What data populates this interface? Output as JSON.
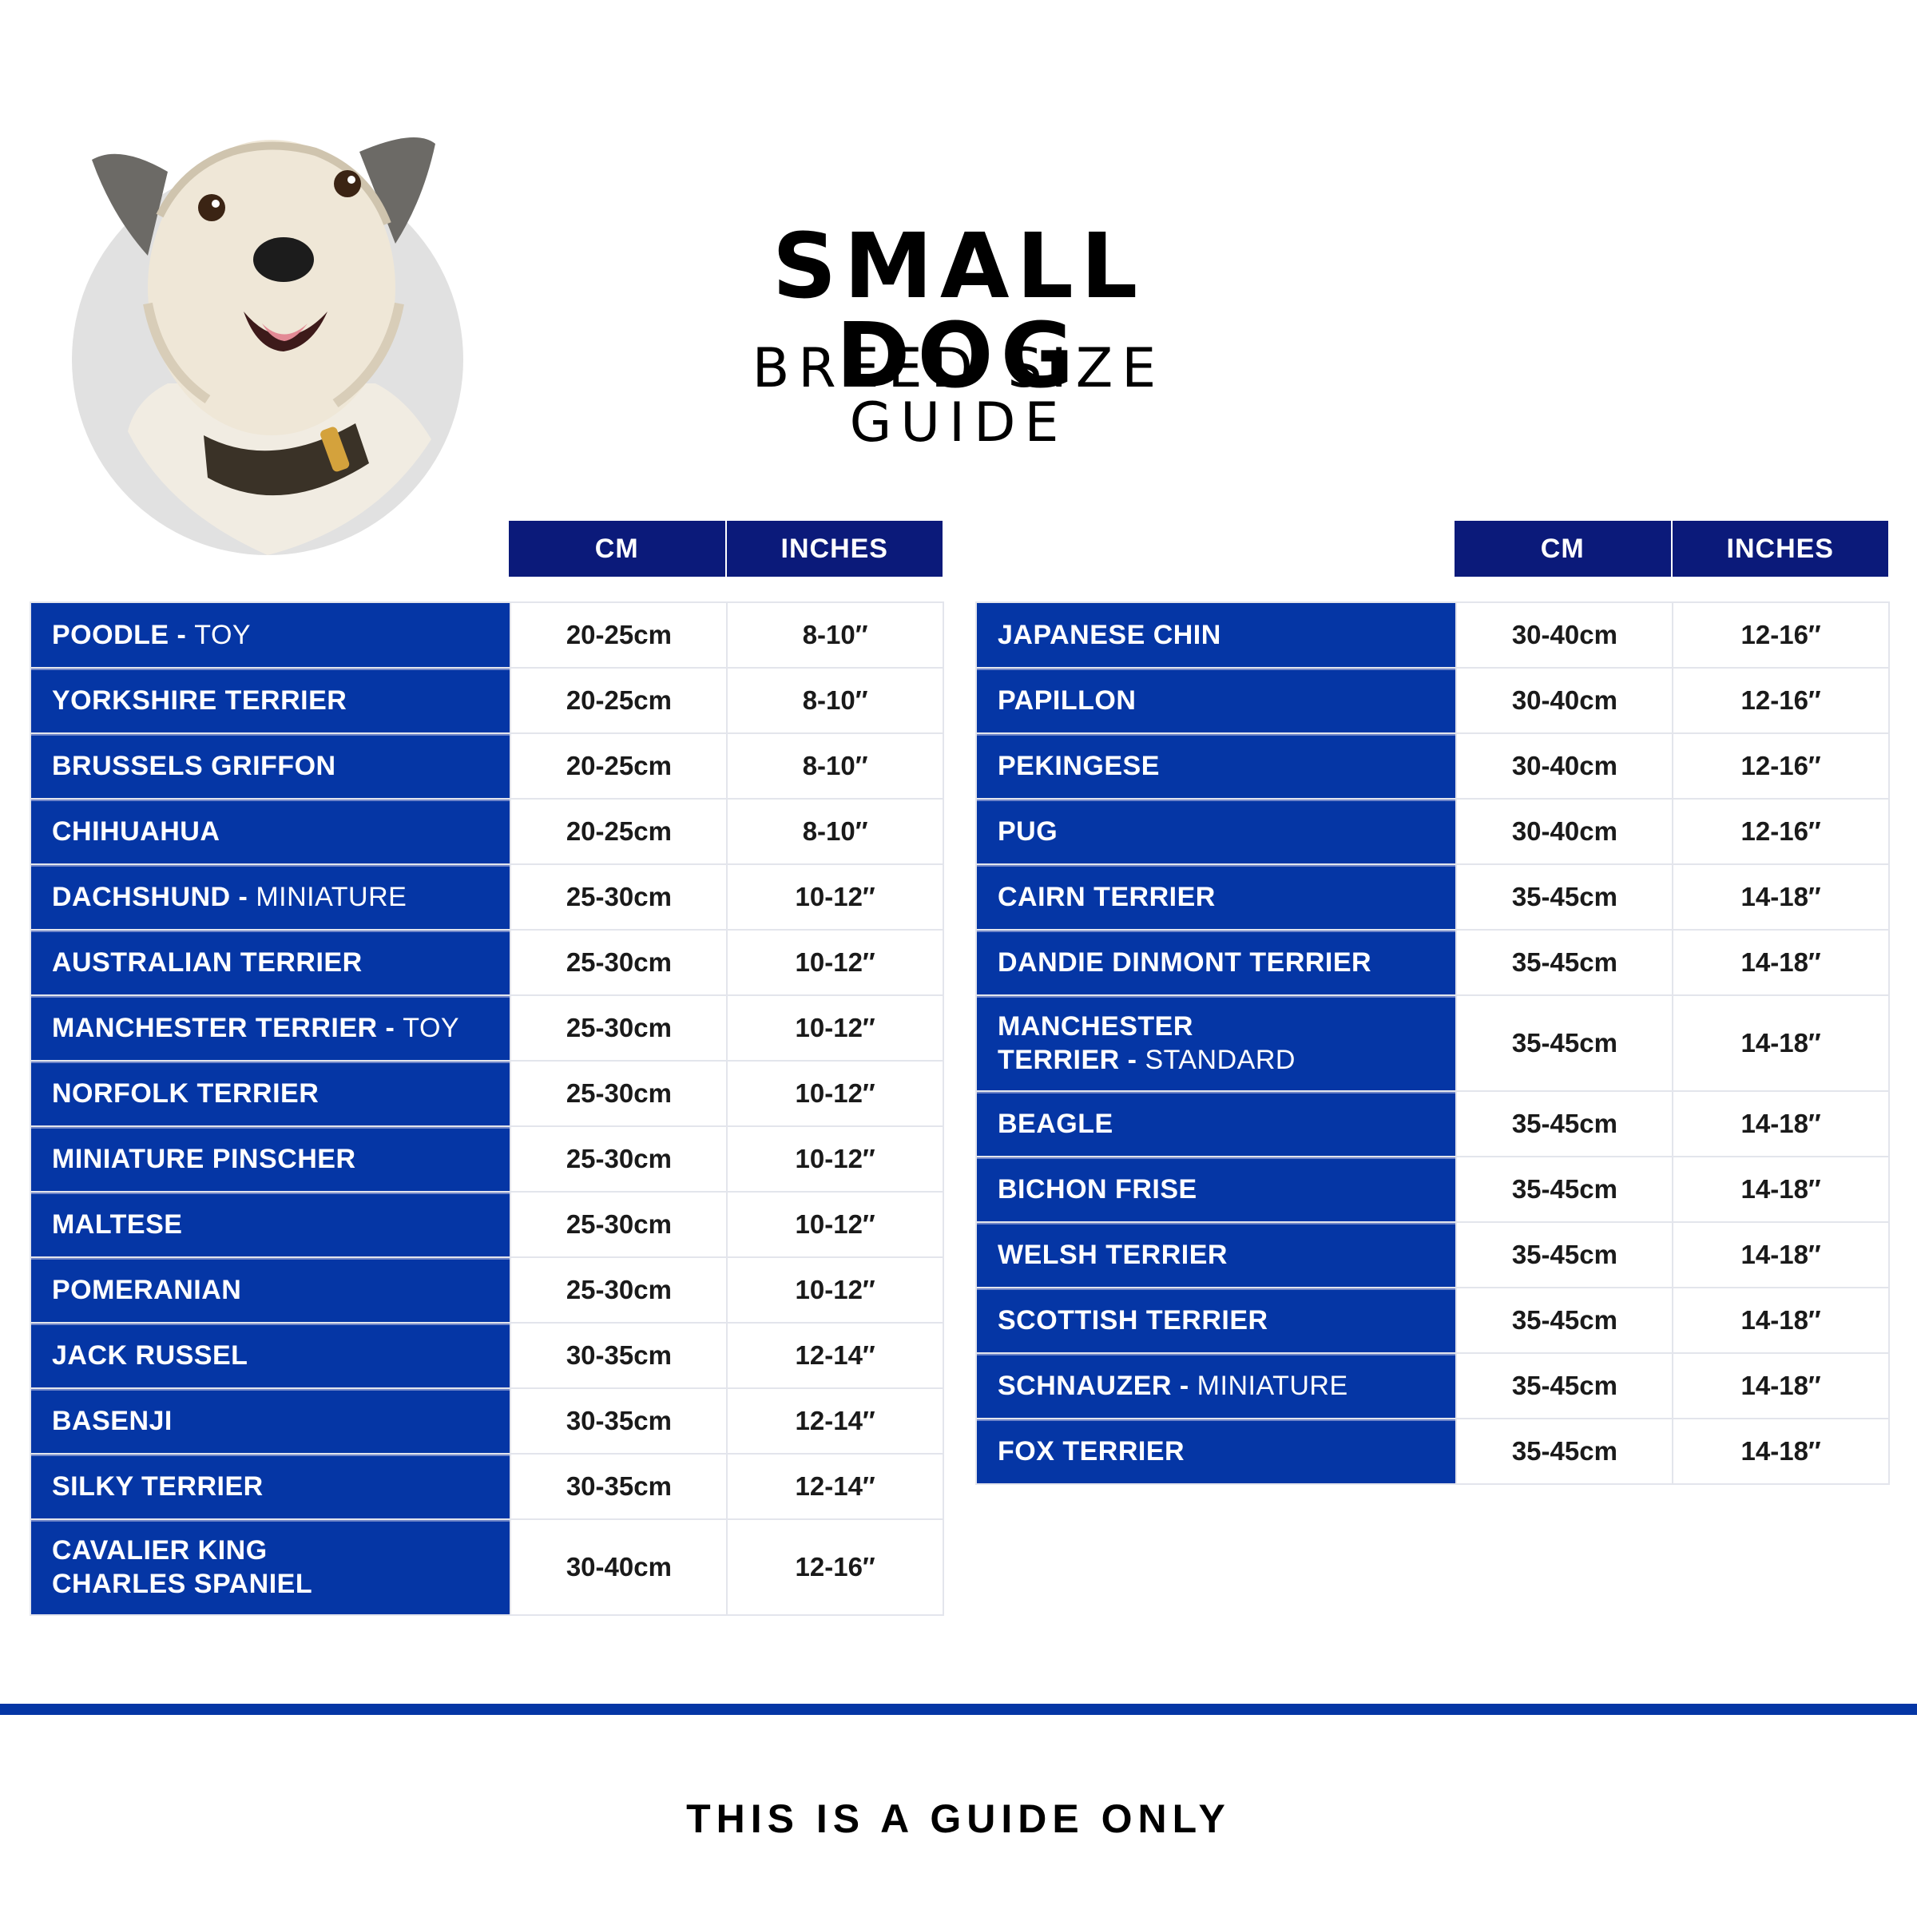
{
  "header": {
    "title": "SMALL DOG",
    "subtitle": "BREED SIZE GUIDE"
  },
  "image": {
    "icon": "dog-portrait",
    "bg_color": "#e1e1e1"
  },
  "colors": {
    "header_navy": "#0b1a7a",
    "row_blue": "#0536a5",
    "grid": "#e3e5ec"
  },
  "columns": {
    "cm": "CM",
    "inches": "INCHES"
  },
  "left_table": {
    "rows": [
      {
        "breed": "POODLE - ",
        "qualifier": "TOY",
        "cm": "20-25cm",
        "inches": "8-10″"
      },
      {
        "breed": "YORKSHIRE TERRIER",
        "qualifier": "",
        "cm": "20-25cm",
        "inches": "8-10″"
      },
      {
        "breed": "BRUSSELS GRIFFON",
        "qualifier": "",
        "cm": "20-25cm",
        "inches": "8-10″"
      },
      {
        "breed": "CHIHUAHUA",
        "qualifier": "",
        "cm": "20-25cm",
        "inches": "8-10″"
      },
      {
        "breed": "DACHSHUND - ",
        "qualifier": "MINIATURE",
        "cm": "25-30cm",
        "inches": "10-12″"
      },
      {
        "breed": "AUSTRALIAN TERRIER",
        "qualifier": "",
        "cm": "25-30cm",
        "inches": "10-12″"
      },
      {
        "breed": "MANCHESTER TERRIER - ",
        "qualifier": "TOY",
        "cm": "25-30cm",
        "inches": "10-12″"
      },
      {
        "breed": "NORFOLK TERRIER",
        "qualifier": "",
        "cm": "25-30cm",
        "inches": "10-12″"
      },
      {
        "breed": "MINIATURE PINSCHER",
        "qualifier": "",
        "cm": "25-30cm",
        "inches": "10-12″"
      },
      {
        "breed": "MALTESE",
        "qualifier": "",
        "cm": "25-30cm",
        "inches": "10-12″"
      },
      {
        "breed": "POMERANIAN",
        "qualifier": "",
        "cm": "25-30cm",
        "inches": "10-12″"
      },
      {
        "breed": "JACK RUSSEL",
        "qualifier": "",
        "cm": "30-35cm",
        "inches": "12-14″"
      },
      {
        "breed": "BASENJI",
        "qualifier": "",
        "cm": "30-35cm",
        "inches": "12-14″"
      },
      {
        "breed": "SILKY TERRIER",
        "qualifier": "",
        "cm": "30-35cm",
        "inches": "12-14″"
      },
      {
        "breed": "CAVALIER KING",
        "breed2": "CHARLES SPANIEL",
        "qualifier": "",
        "cm": "30-40cm",
        "inches": "12-16″"
      }
    ]
  },
  "right_table": {
    "rows": [
      {
        "breed": "JAPANESE CHIN",
        "qualifier": "",
        "cm": "30-40cm",
        "inches": "12-16″"
      },
      {
        "breed": "PAPILLON",
        "qualifier": "",
        "cm": "30-40cm",
        "inches": "12-16″"
      },
      {
        "breed": "PEKINGESE",
        "qualifier": "",
        "cm": "30-40cm",
        "inches": "12-16″"
      },
      {
        "breed": "PUG",
        "qualifier": "",
        "cm": "30-40cm",
        "inches": "12-16″"
      },
      {
        "breed": "CAIRN TERRIER",
        "qualifier": "",
        "cm": "35-45cm",
        "inches": "14-18″"
      },
      {
        "breed": "DANDIE DINMONT TERRIER",
        "qualifier": "",
        "cm": "35-45cm",
        "inches": "14-18″"
      },
      {
        "breed": "MANCHESTER",
        "breed2": "TERRIER - ",
        "qualifier": "STANDARD",
        "cm": "35-45cm",
        "inches": "14-18″"
      },
      {
        "breed": "BEAGLE",
        "qualifier": "",
        "cm": "35-45cm",
        "inches": "14-18″"
      },
      {
        "breed": "BICHON FRISE",
        "qualifier": "",
        "cm": "35-45cm",
        "inches": "14-18″"
      },
      {
        "breed": "WELSH TERRIER",
        "qualifier": "",
        "cm": "35-45cm",
        "inches": "14-18″"
      },
      {
        "breed": "SCOTTISH TERRIER",
        "qualifier": "",
        "cm": "35-45cm",
        "inches": "14-18″"
      },
      {
        "breed": "SCHNAUZER - ",
        "qualifier": "MINIATURE",
        "cm": "35-45cm",
        "inches": "14-18″"
      },
      {
        "breed": "FOX TERRIER",
        "qualifier": "",
        "cm": "35-45cm",
        "inches": "14-18″"
      }
    ]
  },
  "footer": {
    "note": "THIS IS A GUIDE ONLY"
  }
}
